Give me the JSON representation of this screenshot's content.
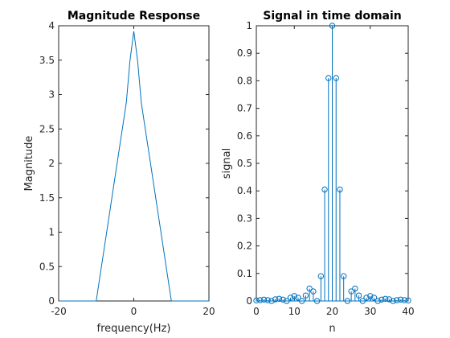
{
  "chart_data": [
    {
      "type": "line",
      "title": "Magnitude Response",
      "xlabel": "frequency(Hz)",
      "ylabel": "Magnitude",
      "xlim": [
        -20,
        20
      ],
      "ylim": [
        0,
        4
      ],
      "xticks": [
        -20,
        0,
        20
      ],
      "yticks": [
        0,
        0.5,
        1,
        1.5,
        2,
        2.5,
        3,
        3.5,
        4
      ],
      "color": "#0072bd",
      "x": [
        -20,
        -10,
        -9,
        -8,
        -7,
        -6,
        -5,
        -4,
        -3,
        -2,
        -1,
        0,
        1,
        2,
        3,
        4,
        5,
        6,
        7,
        8,
        9,
        10,
        20
      ],
      "y": [
        0,
        0,
        0.36,
        0.72,
        1.08,
        1.44,
        1.8,
        2.16,
        2.52,
        2.88,
        3.5,
        3.92,
        3.5,
        2.88,
        2.52,
        2.16,
        1.8,
        1.44,
        1.08,
        0.72,
        0.36,
        0,
        0
      ]
    },
    {
      "type": "stem",
      "title": "Signal in time domain",
      "xlabel": "n",
      "ylabel": "signal",
      "xlim": [
        0,
        40
      ],
      "ylim": [
        0,
        1
      ],
      "xticks": [
        0,
        10,
        20,
        30,
        40
      ],
      "yticks": [
        0,
        0.1,
        0.2,
        0.3,
        0.4,
        0.5,
        0.6,
        0.7,
        0.8,
        0.9,
        1
      ],
      "color": "#0072bd",
      "x": [
        0,
        1,
        2,
        3,
        4,
        5,
        6,
        7,
        8,
        9,
        10,
        11,
        12,
        13,
        14,
        15,
        16,
        17,
        18,
        19,
        20,
        21,
        22,
        23,
        24,
        25,
        26,
        27,
        28,
        29,
        30,
        31,
        32,
        33,
        34,
        35,
        36,
        37,
        38,
        39,
        40
      ],
      "y": [
        0.002,
        0.003,
        0.005,
        0.003,
        0.0,
        0.006,
        0.008,
        0.005,
        0.0,
        0.012,
        0.018,
        0.012,
        0.0,
        0.02,
        0.045,
        0.035,
        0.0,
        0.09,
        0.405,
        0.81,
        1.0,
        0.81,
        0.405,
        0.09,
        0.0,
        0.035,
        0.045,
        0.02,
        0.0,
        0.012,
        0.018,
        0.012,
        0.0,
        0.005,
        0.008,
        0.006,
        0.0,
        0.003,
        0.005,
        0.003,
        0.002
      ]
    }
  ]
}
